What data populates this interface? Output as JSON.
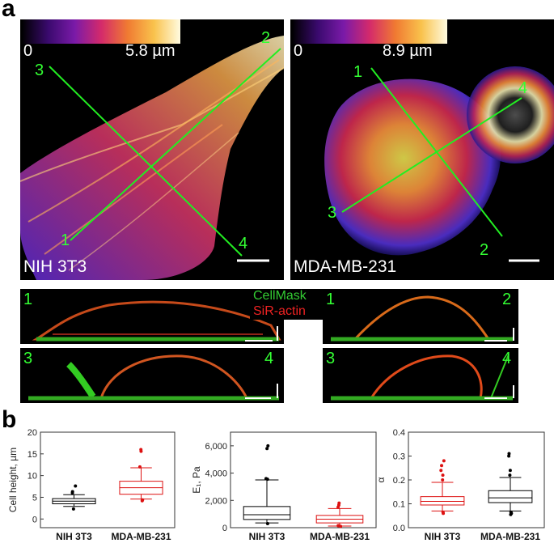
{
  "panel_a": {
    "letter": "a",
    "left": {
      "colorbar_min": "0",
      "colorbar_max": "5.8 µm",
      "cell_line": "NIH 3T3",
      "line_labels": [
        "1",
        "2",
        "3",
        "4"
      ],
      "colors": {
        "low": "#2b0a5a",
        "mid": "#e3315d",
        "high": "#fff9c8"
      }
    },
    "right": {
      "colorbar_min": "0",
      "colorbar_max": "8.9 µm",
      "cell_line": "MDA-MB-231",
      "line_labels": [
        "1",
        "2",
        "3",
        "4"
      ]
    },
    "legend": {
      "cellmask": "CellMask",
      "sir_actin": "SiR-actin"
    },
    "sections": {
      "left_top": [
        "1",
        "2"
      ],
      "left_bottom": [
        "3",
        "4"
      ],
      "right_top": [
        "1",
        "2"
      ],
      "right_bottom": [
        "3",
        "4"
      ]
    }
  },
  "panel_b": {
    "letter": "b"
  },
  "chart_data": [
    {
      "type": "box",
      "ylabel": "Cell height, µm",
      "ylim": [
        -2,
        20
      ],
      "yticks": [
        "0",
        "5",
        "10",
        "15",
        "20"
      ],
      "categories": [
        "NIH 3T3",
        "MDA-MB-231"
      ],
      "series": [
        {
          "category": "NIH 3T3",
          "color": "#000000",
          "whisker_low": 2.9,
          "q1": 3.5,
          "median": 4.1,
          "q3": 4.7,
          "whisker_high": 5.6,
          "outliers": [
            2.3,
            6.0,
            6.3,
            7.6
          ]
        },
        {
          "category": "MDA-MB-231",
          "color": "#dd1111",
          "whisker_low": 4.6,
          "q1": 5.7,
          "median": 7.2,
          "q3": 8.7,
          "whisker_high": 11.8,
          "outliers": [
            4.2,
            4.4,
            12.0,
            15.6,
            16.0
          ]
        }
      ]
    },
    {
      "type": "box",
      "ylabel": "E₁, Pa",
      "ylim": [
        0,
        7000
      ],
      "yticks": [
        "0",
        "2,000",
        "4,000",
        "6,000"
      ],
      "categories": [
        "NIH 3T3",
        "MDA-MB-231"
      ],
      "series": [
        {
          "category": "NIH 3T3",
          "color": "#000000",
          "whisker_low": 350,
          "q1": 600,
          "median": 950,
          "q3": 1550,
          "whisker_high": 3500,
          "outliers": [
            300,
            3550,
            3600,
            5800,
            6000
          ]
        },
        {
          "category": "MDA-MB-231",
          "color": "#dd1111",
          "whisker_low": 120,
          "q1": 350,
          "median": 620,
          "q3": 900,
          "whisker_high": 1400,
          "outliers": [
            100,
            150,
            1500,
            1650,
            1800
          ]
        }
      ]
    },
    {
      "type": "box",
      "ylabel": "α",
      "ylim": [
        0,
        0.4
      ],
      "yticks": [
        "0.0",
        "0.1",
        "0.2",
        "0.3",
        "0.4"
      ],
      "categories": [
        "NIH 3T3",
        "MDA-MB-231"
      ],
      "series": [
        {
          "category": "NIH 3T3",
          "color": "#dd1111",
          "whisker_low": 0.07,
          "q1": 0.095,
          "median": 0.11,
          "q3": 0.13,
          "whisker_high": 0.19,
          "outliers": [
            0.06,
            0.065,
            0.2,
            0.22,
            0.24,
            0.26,
            0.28
          ]
        },
        {
          "category": "MDA-MB-231",
          "color": "#000000",
          "whisker_low": 0.07,
          "q1": 0.105,
          "median": 0.125,
          "q3": 0.155,
          "whisker_high": 0.21,
          "outliers": [
            0.055,
            0.06,
            0.065,
            0.22,
            0.24,
            0.3,
            0.31
          ]
        }
      ]
    }
  ]
}
